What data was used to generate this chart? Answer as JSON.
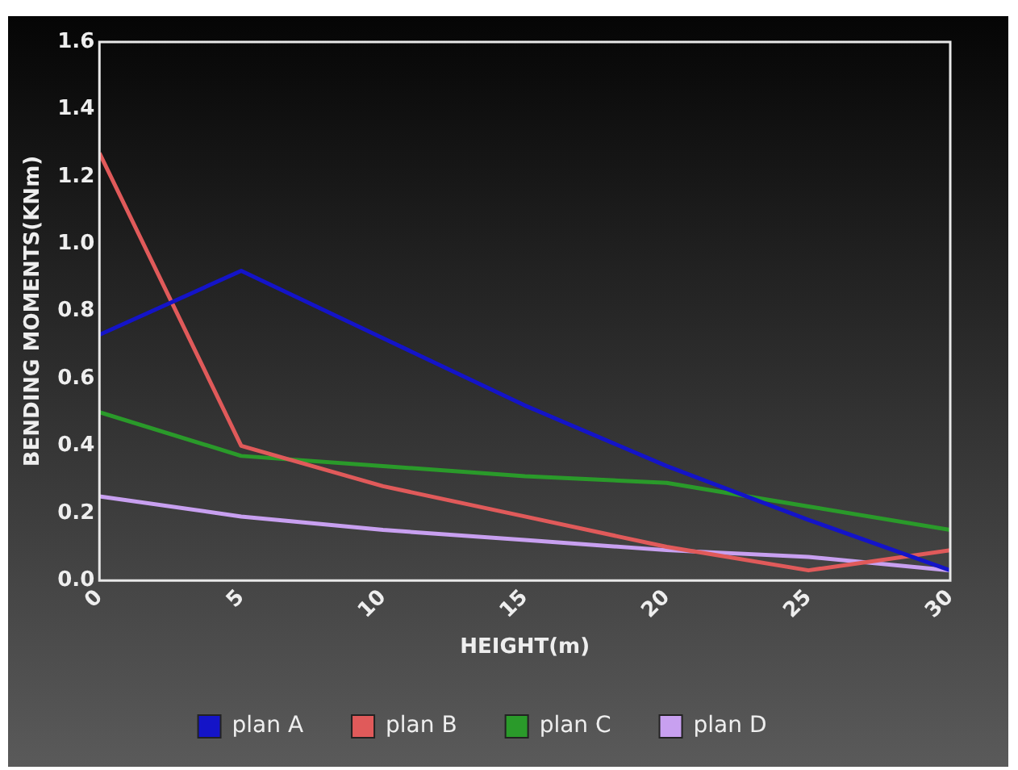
{
  "chart_data": {
    "type": "line",
    "xlabel": "HEIGHT(m)",
    "ylabel": "BENDING MOMENTS(KNm)",
    "x": [
      0,
      5,
      10,
      15,
      20,
      25,
      30
    ],
    "series": [
      {
        "name": "plan A",
        "color": "#1414c8",
        "values": [
          0.73,
          0.92,
          0.72,
          0.52,
          0.34,
          0.18,
          0.03
        ]
      },
      {
        "name": "plan B",
        "color": "#e05a5a",
        "values": [
          1.27,
          0.4,
          0.28,
          0.19,
          0.1,
          0.03,
          0.09
        ]
      },
      {
        "name": "plan C",
        "color": "#2a9a2a",
        "values": [
          0.5,
          0.37,
          0.34,
          0.31,
          0.29,
          0.22,
          0.15
        ]
      },
      {
        "name": "plan D",
        "color": "#c8a0f0",
        "values": [
          0.25,
          0.19,
          0.15,
          0.12,
          0.09,
          0.07,
          0.03
        ]
      }
    ],
    "xlim": [
      0,
      30
    ],
    "xticks": [
      0,
      5,
      10,
      15,
      20,
      25,
      30
    ],
    "ylim": [
      0,
      1.6
    ],
    "yticks": [
      {
        "value": 0,
        "label": "0.0"
      },
      0.2,
      0.4,
      0.6,
      0.8,
      {
        "value": 1,
        "label": "1.0"
      },
      1.2,
      1.4,
      1.6
    ],
    "grid": false,
    "legend": "bottom",
    "marker": "none",
    "line_style": "solid"
  }
}
